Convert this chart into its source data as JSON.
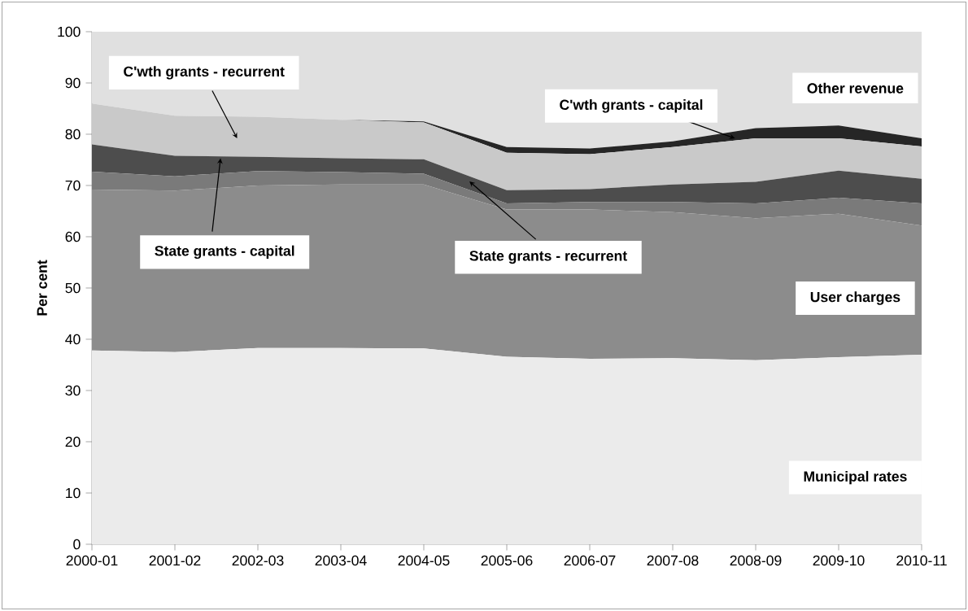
{
  "chart_data": {
    "type": "area",
    "stacked": true,
    "ylabel": "Per cent",
    "categories": [
      "2000-01",
      "2001-02",
      "2002-03",
      "2003-04",
      "2004-05",
      "2005-06",
      "2006-07",
      "2007-08",
      "2008-09",
      "2009-10",
      "2010-11"
    ],
    "ylim": [
      0,
      100
    ],
    "yticks": [
      0,
      10,
      20,
      30,
      40,
      50,
      60,
      70,
      80,
      90,
      100
    ],
    "series": [
      {
        "name": "Municipal rates",
        "color": "#ebebeb",
        "values": [
          37.8,
          37.5,
          38.3,
          38.3,
          38.2,
          36.6,
          36.2,
          36.3,
          35.9,
          36.5,
          37.0
        ]
      },
      {
        "name": "User charges",
        "color": "#8c8c8c",
        "values": [
          31.4,
          31.5,
          31.7,
          31.9,
          32.0,
          28.7,
          29.1,
          28.5,
          27.7,
          28.0,
          25.2
        ]
      },
      {
        "name": "State grants - recurrent",
        "color": "#7a7a7a",
        "values": [
          3.5,
          2.8,
          2.8,
          2.4,
          2.1,
          1.2,
          1.5,
          2.0,
          2.9,
          3.1,
          4.3
        ]
      },
      {
        "name": "State grants - capital",
        "color": "#4d4d4d",
        "values": [
          5.3,
          4.0,
          2.8,
          2.7,
          2.8,
          2.6,
          2.5,
          3.4,
          4.2,
          5.3,
          4.8
        ]
      },
      {
        "name": "C'wth grants - recurrent",
        "color": "#c9c9c9",
        "values": [
          8.0,
          7.8,
          7.8,
          7.5,
          7.2,
          7.3,
          6.8,
          7.3,
          8.5,
          6.3,
          6.3
        ]
      },
      {
        "name": "C'wth grants - capital",
        "color": "#262626",
        "values": [
          0,
          0,
          0,
          0,
          0.2,
          1.1,
          1.1,
          1.1,
          2.0,
          2.5,
          1.6
        ]
      },
      {
        "name": "Other revenue",
        "color": "#e0e0e0",
        "values": [
          14.0,
          16.4,
          16.6,
          17.2,
          17.5,
          22.5,
          22.8,
          21.4,
          18.8,
          18.3,
          20.8
        ]
      }
    ]
  }
}
